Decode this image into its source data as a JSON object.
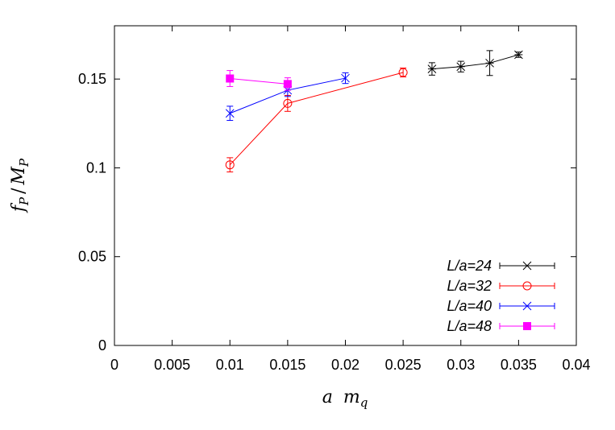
{
  "chart_data": {
    "type": "scatter",
    "title": "",
    "xlabel": "a m_q",
    "ylabel": "f_P / M_P",
    "xlim": [
      0,
      0.04
    ],
    "ylim": [
      0,
      0.18
    ],
    "x_ticks": [
      "0",
      "0.005",
      "0.01",
      "0.015",
      "0.02",
      "0.025",
      "0.03",
      "0.035",
      "0.04"
    ],
    "y_ticks": [
      "0",
      "0.05",
      "0.1",
      "0.15"
    ],
    "grid": false,
    "legend_position": "bottom-right",
    "series": [
      {
        "name": "L/a=24",
        "color": "#000000",
        "marker": "asterisk",
        "x": [
          0.0275,
          0.03,
          0.0325,
          0.035
        ],
        "y": [
          0.1557,
          0.157,
          0.159,
          0.1637
        ],
        "err": [
          0.0035,
          0.003,
          0.007,
          0.0015
        ]
      },
      {
        "name": "L/a=32",
        "color": "#ff0000",
        "marker": "circle",
        "x": [
          0.01,
          0.015,
          0.025
        ],
        "y": [
          0.1017,
          0.1363,
          0.1537
        ],
        "err": [
          0.004,
          0.0045,
          0.0025
        ]
      },
      {
        "name": "L/a=40",
        "color": "#0000ff",
        "marker": "cross",
        "x": [
          0.01,
          0.015,
          0.02
        ],
        "y": [
          0.1307,
          0.1437,
          0.1505
        ],
        "err": [
          0.004,
          0.0035,
          0.003
        ]
      },
      {
        "name": "L/a=48",
        "color": "#ff00ff",
        "marker": "filled-square",
        "x": [
          0.01,
          0.015
        ],
        "y": [
          0.1503,
          0.1472
        ],
        "err": [
          0.0045,
          0.0035
        ]
      }
    ]
  }
}
